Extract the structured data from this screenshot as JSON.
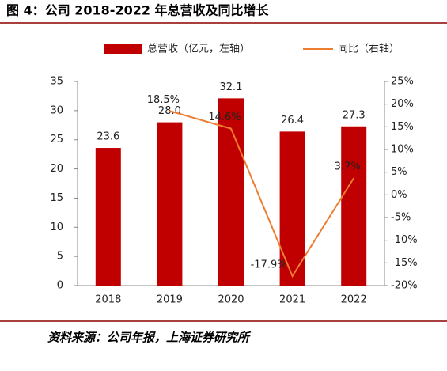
{
  "chart_data": {
    "type": "bar-line",
    "title": "图 4：公司 2018-2022 年总营收及同比增长",
    "source": "资料来源：公司年报，上海证券研究所",
    "categories": [
      "2018",
      "2019",
      "2020",
      "2021",
      "2022"
    ],
    "series": [
      {
        "name": "总营收（亿元，左轴）",
        "color": "#c00000",
        "type": "bar",
        "values": [
          23.6,
          28.0,
          32.1,
          26.4,
          27.3
        ],
        "value_labels": [
          "23.6",
          "28.0",
          "32.1",
          "26.4",
          "27.3"
        ]
      },
      {
        "name": "同比（右轴）",
        "color": "#ed7d31",
        "type": "line",
        "axis": "y2",
        "values": [
          null,
          18.5,
          14.6,
          -17.9,
          3.7
        ],
        "value_labels": [
          null,
          "18.5%",
          "14.6%",
          "-17.9%",
          "3.7%"
        ]
      }
    ],
    "ylim": [
      0,
      35
    ],
    "yticks": [
      0,
      5,
      10,
      15,
      20,
      25,
      30,
      35
    ],
    "y2lim": [
      -20,
      25
    ],
    "y2ticks": [
      {
        "value": -20,
        "label": "-20%"
      },
      {
        "value": -15,
        "label": "-15%"
      },
      {
        "value": -10,
        "label": "-10%"
      },
      {
        "value": -5,
        "label": "-5%"
      },
      {
        "value": 0,
        "label": "0%"
      },
      {
        "value": 5,
        "label": "5%"
      },
      {
        "value": 10,
        "label": "10%"
      },
      {
        "value": 15,
        "label": "15%"
      },
      {
        "value": 20,
        "label": "20%"
      },
      {
        "value": 25,
        "label": "25%"
      }
    ]
  }
}
